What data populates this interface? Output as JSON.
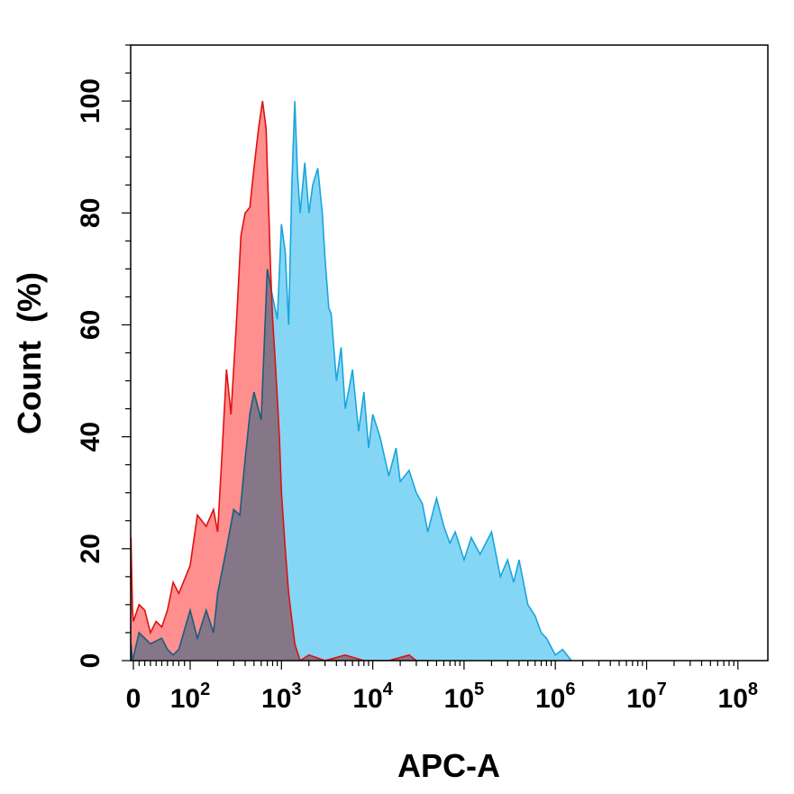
{
  "chart_data": {
    "type": "area",
    "xlabel": "APC-A",
    "ylabel": "Count  (%)",
    "x_scale": "biexponential",
    "xlim": [
      -30,
      100000000
    ],
    "ylim": [
      0,
      110
    ],
    "x_ticks": [
      {
        "value": 0,
        "base": "0",
        "exp": ""
      },
      {
        "value": 100,
        "base": "10",
        "exp": "2"
      },
      {
        "value": 1000,
        "base": "10",
        "exp": "3"
      },
      {
        "value": 10000,
        "base": "10",
        "exp": "4"
      },
      {
        "value": 100000,
        "base": "10",
        "exp": "5"
      },
      {
        "value": 1000000,
        "base": "10",
        "exp": "6"
      },
      {
        "value": 10000000,
        "base": "10",
        "exp": "7"
      },
      {
        "value": 100000000,
        "base": "10",
        "exp": "8"
      }
    ],
    "y_ticks": [
      0,
      20,
      40,
      60,
      80,
      100
    ],
    "grid": false,
    "series": [
      {
        "color": "#ff7a7a",
        "stroke": "#e01010",
        "x": [
          -30,
          -20,
          -10,
          0,
          10,
          20,
          30,
          40,
          50,
          60,
          70,
          80,
          100,
          120,
          150,
          180,
          200,
          220,
          250,
          280,
          320,
          360,
          400,
          450,
          500,
          560,
          620,
          680,
          700,
          730,
          760,
          800,
          850,
          900,
          950,
          1000,
          1100,
          1200,
          1400,
          1600,
          2000,
          3000,
          5000,
          8000,
          10000,
          15000,
          25000,
          30000,
          40000
        ],
        "y": [
          22,
          15,
          9,
          7,
          10,
          9,
          5,
          7,
          6,
          9,
          14,
          12,
          17,
          26,
          24,
          27,
          23,
          35,
          52,
          44,
          60,
          76,
          80,
          81,
          88,
          95,
          100,
          95,
          88,
          79,
          70,
          61,
          54,
          47,
          40,
          30,
          20,
          12,
          3,
          0,
          1,
          0,
          1,
          0,
          0,
          0,
          1,
          0,
          0
        ]
      },
      {
        "color": "#66ccf2",
        "stroke": "#1aa5dd",
        "x": [
          -30,
          -10,
          10,
          30,
          50,
          60,
          70,
          80,
          100,
          120,
          150,
          180,
          200,
          250,
          300,
          350,
          400,
          450,
          500,
          600,
          700,
          800,
          900,
          1000,
          1100,
          1200,
          1300,
          1400,
          1500,
          1600,
          1800,
          2000,
          2200,
          2500,
          2800,
          3000,
          3300,
          3500,
          4000,
          4500,
          5000,
          6000,
          7000,
          8000,
          9000,
          10000,
          12000,
          15000,
          18000,
          20000,
          25000,
          30000,
          35000,
          40000,
          50000,
          60000,
          70000,
          80000,
          100000,
          120000,
          150000,
          200000,
          250000,
          300000,
          350000,
          400000,
          500000,
          600000,
          700000,
          800000,
          1000000,
          1200000,
          1500000
        ],
        "y": [
          3,
          0,
          5,
          3,
          4,
          2,
          1,
          2,
          9,
          4,
          9,
          5,
          12,
          20,
          27,
          26,
          36,
          44,
          48,
          43,
          70,
          65,
          61,
          78,
          73,
          60,
          85,
          100,
          87,
          80,
          89,
          80,
          85,
          88,
          80,
          72,
          63,
          62,
          50,
          56,
          45,
          52,
          41,
          48,
          38,
          44,
          40,
          33,
          38,
          32,
          34,
          30,
          28,
          23,
          29,
          24,
          21,
          23,
          18,
          22,
          19,
          23,
          15,
          18,
          14,
          18,
          10,
          8,
          5,
          4,
          1,
          2,
          0
        ]
      }
    ]
  }
}
